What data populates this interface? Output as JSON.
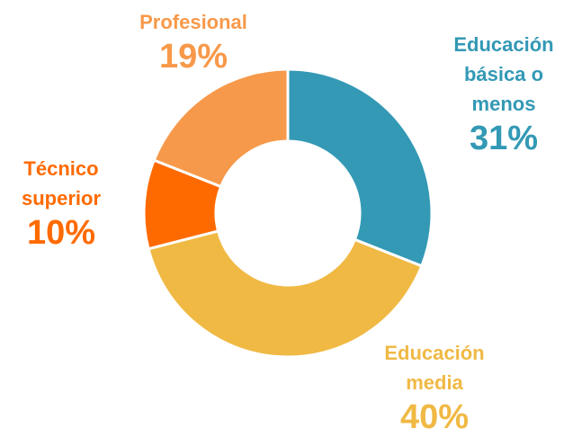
{
  "chart_data": {
    "type": "donut",
    "categories": [
      "Educación básica o menos",
      "Educación media",
      "Técnico superior",
      "Profesional"
    ],
    "values": [
      31,
      40,
      10,
      19
    ],
    "value_labels": [
      "31%",
      "40%",
      "10%",
      "19%"
    ],
    "colors": [
      "#3399b5",
      "#f0b944",
      "#ff6a00",
      "#f7994a"
    ]
  }
}
